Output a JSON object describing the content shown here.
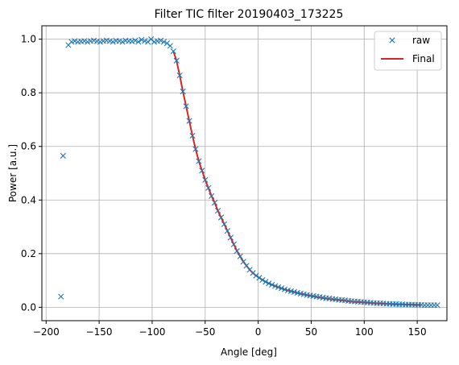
{
  "chart_data": {
    "type": "line",
    "title": "Filter TIC filter 20190403_173225",
    "xlabel": "Angle [deg]",
    "ylabel": "Power [a.u.]",
    "xlim": [
      -204,
      178
    ],
    "ylim": [
      -0.05,
      1.05
    ],
    "xticks": [
      -200,
      -150,
      -100,
      -50,
      0,
      50,
      100,
      150
    ],
    "yticks": [
      0.0,
      0.2,
      0.4,
      0.6,
      0.8,
      1.0
    ],
    "xtick_labels": [
      "−200",
      "−150",
      "−100",
      "−50",
      "0",
      "50",
      "100",
      "150"
    ],
    "ytick_labels": [
      "0.0",
      "0.2",
      "0.4",
      "0.6",
      "0.8",
      "1.0"
    ],
    "grid": true,
    "legend": "top-right",
    "series": [
      {
        "name": "raw",
        "style": "markers",
        "marker": "x",
        "color": "#1f77b4",
        "x": [
          -186,
          -184,
          -179,
          -176,
          -173,
          -170,
          -167,
          -164,
          -161,
          -158,
          -155,
          -152,
          -149,
          -146,
          -143,
          -140,
          -137,
          -134,
          -131,
          -128,
          -125,
          -122,
          -119,
          -116,
          -113,
          -110,
          -107,
          -104,
          -101,
          -98,
          -95,
          -92,
          -89,
          -86,
          -83,
          -80,
          -77,
          -74,
          -71,
          -68,
          -65,
          -62,
          -59,
          -56,
          -53,
          -50,
          -47,
          -44,
          -41,
          -38,
          -35,
          -32,
          -29,
          -26,
          -23,
          -20,
          -17,
          -14,
          -11,
          -8,
          -5,
          -2,
          1,
          4,
          7,
          10,
          13,
          16,
          19,
          22,
          25,
          28,
          31,
          34,
          37,
          40,
          43,
          46,
          49,
          52,
          55,
          58,
          61,
          64,
          67,
          70,
          73,
          76,
          79,
          82,
          85,
          88,
          91,
          94,
          97,
          100,
          103,
          106,
          109,
          112,
          115,
          118,
          121,
          124,
          127,
          130,
          133,
          136,
          139,
          142,
          145,
          148,
          151,
          154,
          157,
          160,
          163,
          166,
          169
        ],
        "y": [
          0.04,
          0.565,
          0.978,
          0.99,
          0.993,
          0.99,
          0.992,
          0.993,
          0.99,
          0.993,
          0.995,
          0.992,
          0.99,
          0.993,
          0.995,
          0.993,
          0.99,
          0.994,
          0.993,
          0.99,
          0.995,
          0.993,
          0.992,
          0.995,
          0.99,
          0.998,
          0.993,
          0.99,
          1.0,
          0.99,
          0.993,
          0.995,
          0.99,
          0.985,
          0.975,
          0.955,
          0.92,
          0.865,
          0.805,
          0.75,
          0.695,
          0.64,
          0.59,
          0.545,
          0.51,
          0.475,
          0.445,
          0.415,
          0.39,
          0.36,
          0.335,
          0.31,
          0.285,
          0.26,
          0.235,
          0.21,
          0.19,
          0.17,
          0.155,
          0.14,
          0.128,
          0.118,
          0.11,
          0.102,
          0.095,
          0.089,
          0.084,
          0.079,
          0.075,
          0.071,
          0.067,
          0.063,
          0.06,
          0.057,
          0.054,
          0.051,
          0.049,
          0.046,
          0.044,
          0.042,
          0.04,
          0.038,
          0.036,
          0.034,
          0.033,
          0.031,
          0.03,
          0.028,
          0.027,
          0.026,
          0.024,
          0.023,
          0.022,
          0.021,
          0.02,
          0.019,
          0.018,
          0.017,
          0.016,
          0.015,
          0.015,
          0.014,
          0.013,
          0.013,
          0.012,
          0.012,
          0.011,
          0.011,
          0.01,
          0.01,
          0.01,
          0.009,
          0.009,
          0.009,
          0.008,
          0.008,
          0.008,
          0.008,
          0.008
        ]
      },
      {
        "name": "Final",
        "style": "line",
        "color": "#d62728",
        "x": [
          -80,
          -77,
          -74,
          -71,
          -68,
          -65,
          -62,
          -59,
          -56,
          -53,
          -50,
          -47,
          -44,
          -41,
          -38,
          -35,
          -32,
          -29,
          -26,
          -23,
          -20,
          -17,
          -14,
          -11,
          -8,
          -5,
          -2,
          1,
          5,
          10,
          15,
          20,
          25,
          30,
          35,
          40,
          45,
          50,
          55,
          60,
          65,
          70,
          75,
          80,
          85,
          90,
          95,
          100,
          105,
          110,
          115,
          120,
          125,
          130,
          135,
          140,
          145,
          150,
          153
        ],
        "y": [
          0.955,
          0.92,
          0.865,
          0.805,
          0.75,
          0.695,
          0.64,
          0.59,
          0.545,
          0.51,
          0.475,
          0.445,
          0.415,
          0.39,
          0.36,
          0.335,
          0.31,
          0.285,
          0.26,
          0.235,
          0.21,
          0.19,
          0.17,
          0.155,
          0.14,
          0.128,
          0.118,
          0.11,
          0.1,
          0.089,
          0.081,
          0.073,
          0.066,
          0.061,
          0.055,
          0.05,
          0.046,
          0.042,
          0.038,
          0.035,
          0.032,
          0.029,
          0.027,
          0.025,
          0.022,
          0.02,
          0.019,
          0.018,
          0.016,
          0.015,
          0.014,
          0.013,
          0.012,
          0.011,
          0.011,
          0.01,
          0.01,
          0.009,
          0.009
        ]
      }
    ]
  }
}
